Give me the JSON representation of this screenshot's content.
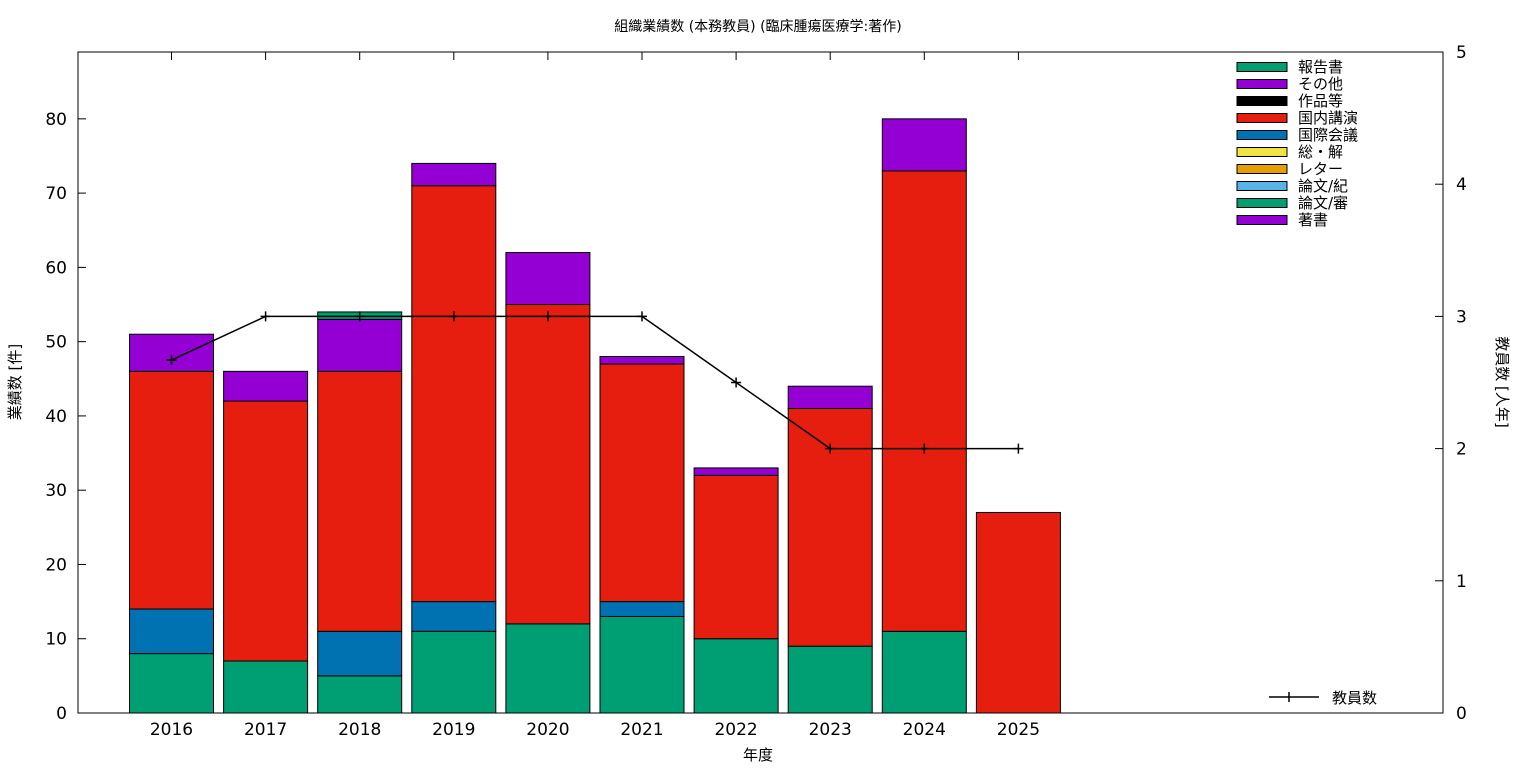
{
  "chart_data": {
    "type": "bar",
    "title": "組織業績数 (本務教員) (臨床腫瘍医療学:著作)",
    "xlabel": "年度",
    "ylabel": "業績数 [件]",
    "y2label": "教員数 [人年]",
    "categories": [
      "2016",
      "2017",
      "2018",
      "2019",
      "2020",
      "2021",
      "2022",
      "2023",
      "2024",
      "2025"
    ],
    "ylim": [
      0,
      89
    ],
    "yticks": [
      0,
      10,
      20,
      30,
      40,
      50,
      60,
      70,
      80
    ],
    "y2lim": [
      0,
      5
    ],
    "y2ticks": [
      0,
      1,
      2,
      3,
      4,
      5
    ],
    "legend_position": "top-right",
    "series": [
      {
        "name": "著書",
        "color": "#9400d3",
        "values": [
          0,
          0,
          0,
          0,
          0,
          0,
          0,
          0,
          0,
          0
        ]
      },
      {
        "name": "論文/審",
        "color": "#009e73",
        "values": [
          8,
          7,
          5,
          11,
          12,
          13,
          10,
          9,
          11,
          0
        ]
      },
      {
        "name": "論文/紀",
        "color": "#56b4e9",
        "values": [
          0,
          0,
          0,
          0,
          0,
          0,
          0,
          0,
          0,
          0
        ]
      },
      {
        "name": "レター",
        "color": "#e69f00",
        "values": [
          0,
          0,
          0,
          0,
          0,
          0,
          0,
          0,
          0,
          0
        ]
      },
      {
        "name": "総・解",
        "color": "#f0e442",
        "values": [
          0,
          0,
          0,
          0,
          0,
          0,
          0,
          0,
          0,
          0
        ]
      },
      {
        "name": "国際会議",
        "color": "#0072b2",
        "values": [
          6,
          0,
          6,
          4,
          0,
          2,
          0,
          0,
          0,
          0
        ]
      },
      {
        "name": "国内講演",
        "color": "#e51e10",
        "values": [
          32,
          35,
          35,
          56,
          43,
          32,
          22,
          32,
          62,
          27
        ]
      },
      {
        "name": "作品等",
        "color": "#000000",
        "values": [
          0,
          0,
          0,
          0,
          0,
          0,
          0,
          0,
          0,
          0
        ]
      },
      {
        "name": "その他",
        "color": "#9400d3",
        "values": [
          5,
          4,
          7,
          3,
          7,
          1,
          1,
          3,
          7,
          0
        ]
      },
      {
        "name": "報告書",
        "color": "#009e73",
        "values": [
          0,
          0,
          1,
          0,
          0,
          0,
          0,
          0,
          0,
          0
        ]
      }
    ],
    "line_series": {
      "name": "教員数",
      "color": "#000000",
      "axis": "y2",
      "values": [
        2.67,
        3,
        3,
        3,
        3,
        3,
        2.5,
        2,
        2,
        2
      ]
    }
  }
}
